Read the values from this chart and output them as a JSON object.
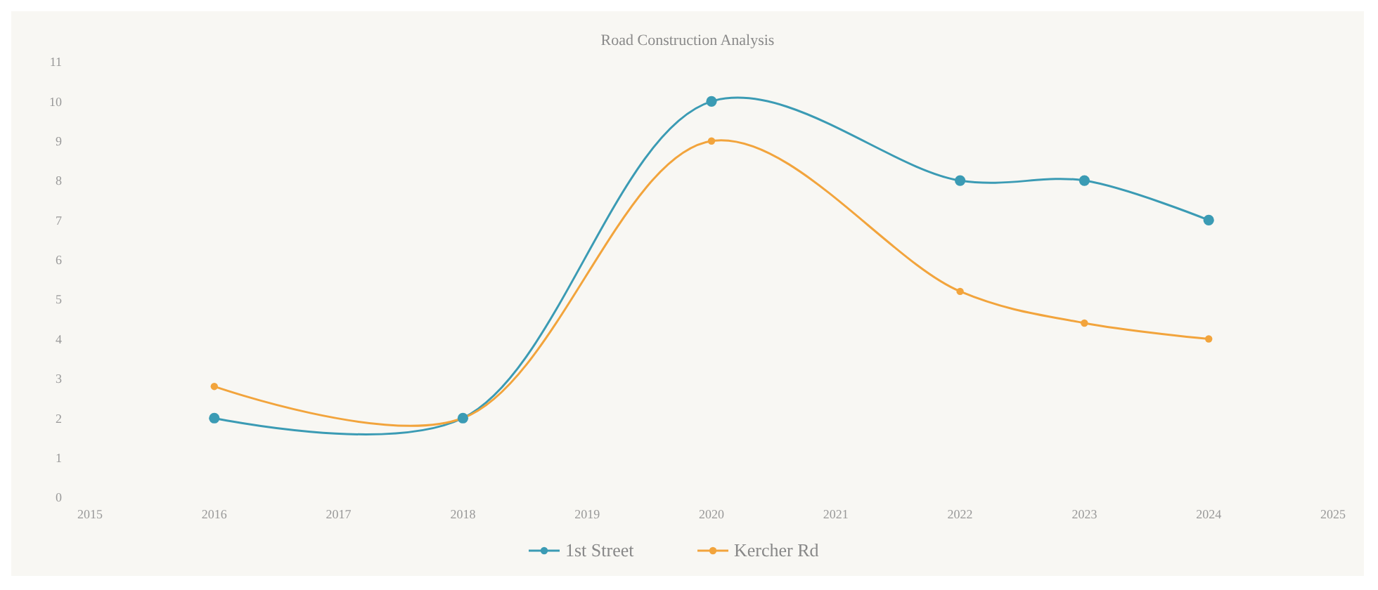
{
  "chart_data": {
    "type": "line",
    "title": "Road Construction Analysis",
    "x": [
      2016,
      2018,
      2020,
      2022,
      2023,
      2024
    ],
    "series": [
      {
        "name": "1st Street",
        "color": "#3b9bb4",
        "values": [
          2,
          2,
          10,
          8,
          8,
          7
        ]
      },
      {
        "name": "Kercher Rd",
        "color": "#f2a43c",
        "values": [
          2.8,
          2,
          9,
          5.2,
          4.4,
          4
        ]
      }
    ],
    "xlim": [
      2015,
      2025
    ],
    "xticks": [
      2015,
      2016,
      2017,
      2018,
      2019,
      2020,
      2021,
      2022,
      2023,
      2024,
      2025
    ],
    "ylim": [
      0,
      11
    ],
    "yticks": [
      0,
      1,
      2,
      3,
      4,
      5,
      6,
      7,
      8,
      9,
      10,
      11
    ],
    "legend": "bottom",
    "marker": "circle",
    "line_style": "solid"
  }
}
